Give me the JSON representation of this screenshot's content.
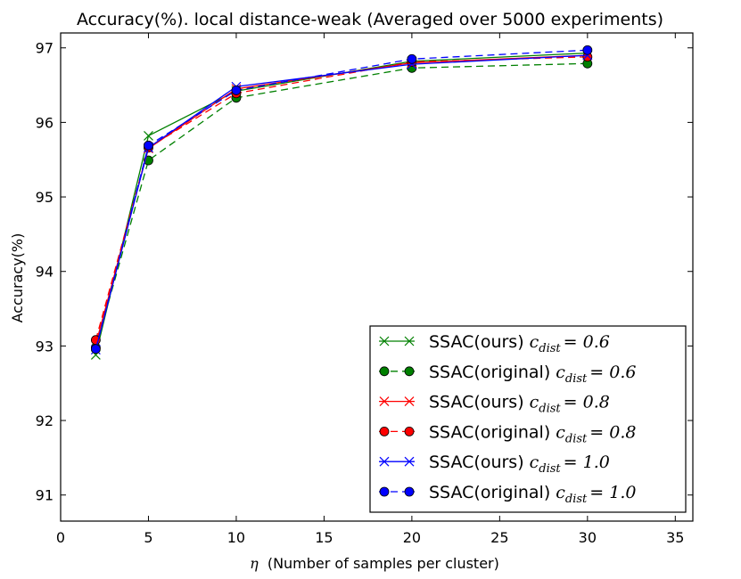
{
  "chart_data": {
    "type": "line",
    "title": "Accuracy(%). local distance-weak (Averaged over 5000 experiments)",
    "xlabel": "(Number of samples per cluster)",
    "xlabel_symbol": "η",
    "ylabel": "Accuracy(%)",
    "xlim": [
      0,
      36
    ],
    "ylim": [
      90.65,
      97.2
    ],
    "xticks": [
      0,
      5,
      10,
      15,
      20,
      25,
      30,
      35
    ],
    "yticks": [
      91,
      92,
      93,
      94,
      95,
      96,
      97
    ],
    "x": [
      2,
      5,
      10,
      20,
      30
    ],
    "legend_position": "lower-right",
    "series": [
      {
        "name": "SSAC(ours)",
        "math_var": "c",
        "math_sub": "dist",
        "math_val": "= 0.6",
        "color": "#008000",
        "linestyle": "solid",
        "marker": "x",
        "values": [
          92.88,
          95.82,
          96.42,
          96.82,
          96.93
        ]
      },
      {
        "name": "SSAC(original)",
        "math_var": "c",
        "math_sub": "dist",
        "math_val": "= 0.6",
        "color": "#008000",
        "linestyle": "dashed",
        "marker": "o",
        "values": [
          92.98,
          95.49,
          96.33,
          96.73,
          96.79
        ]
      },
      {
        "name": "SSAC(ours)",
        "math_var": "c",
        "math_sub": "dist",
        "math_val": "= 0.8",
        "color": "#ff0000",
        "linestyle": "solid",
        "marker": "x",
        "values": [
          93.02,
          95.65,
          96.45,
          96.8,
          96.9
        ]
      },
      {
        "name": "SSAC(original)",
        "math_var": "c",
        "math_sub": "dist",
        "math_val": "= 0.8",
        "color": "#ff0000",
        "linestyle": "dashed",
        "marker": "o",
        "values": [
          93.08,
          95.66,
          96.39,
          96.81,
          96.88
        ]
      },
      {
        "name": "SSAC(ours)",
        "math_var": "c",
        "math_sub": "dist",
        "math_val": "= 1.0",
        "color": "#0000ff",
        "linestyle": "solid",
        "marker": "x",
        "values": [
          92.95,
          95.66,
          96.48,
          96.78,
          96.9
        ]
      },
      {
        "name": "SSAC(original)",
        "math_var": "c",
        "math_sub": "dist",
        "math_val": "= 1.0",
        "color": "#0000ff",
        "linestyle": "dashed",
        "marker": "o",
        "values": [
          92.96,
          95.69,
          96.43,
          96.85,
          96.97
        ]
      }
    ]
  }
}
